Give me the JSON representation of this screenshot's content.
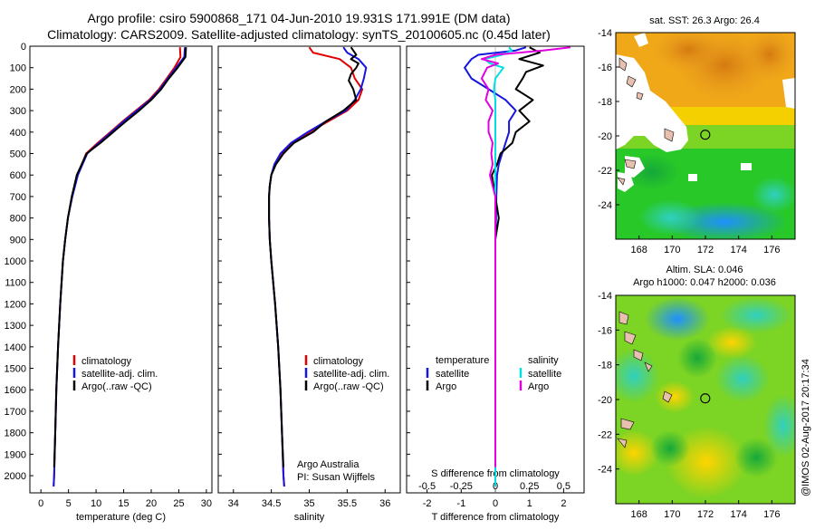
{
  "title_line1": "Argo profile: csiro 5900868_171 04-Jun-2010 19.931S 171.991E (DM data)",
  "title_line2": "Climatology: CARS2009. Satellite-adjusted climatology: synTS_20100605.nc (0.45d later)",
  "credit": "@IMOS 02-Aug-2017 20:17:34",
  "colors": {
    "climatology": "#e00000",
    "satellite": "#1515e0",
    "argo": "#000000",
    "s_satellite": "#00e0e0",
    "s_argo": "#e000e0"
  },
  "chart_data": [
    {
      "id": "temperature",
      "type": "line",
      "xlabel": "temperature (deg C)",
      "ylabel": "",
      "xlim": [
        -2,
        31
      ],
      "ylim": [
        2080,
        0
      ],
      "xticks": [
        "0",
        "5",
        "10",
        "15",
        "20",
        "25",
        "30"
      ],
      "yticks": [
        "0",
        "100",
        "200",
        "300",
        "400",
        "500",
        "600",
        "700",
        "800",
        "900",
        "1000",
        "1100",
        "1200",
        "1300",
        "1400",
        "1500",
        "1600",
        "1700",
        "1800",
        "1900",
        "2000"
      ],
      "legend": [
        "climatology",
        "satellite-adj. clim.",
        "Argo(..raw -QC)"
      ],
      "series": [
        {
          "name": "climatology",
          "depth": [
            5,
            50,
            100,
            150,
            200,
            250,
            300,
            350,
            400,
            450,
            500,
            600,
            700,
            800,
            900,
            1000,
            1200,
            1400,
            1600,
            1800,
            2000,
            2050
          ],
          "values": [
            25.2,
            25.3,
            24.2,
            22.8,
            21.4,
            19.6,
            17.2,
            14.8,
            12.6,
            10.3,
            8.2,
            6.6,
            5.6,
            4.9,
            4.4,
            4.0,
            3.5,
            3.1,
            2.8,
            2.6,
            2.4,
            2.3
          ]
        },
        {
          "name": "satellite-adj. clim.",
          "depth": [
            5,
            50,
            100,
            150,
            200,
            250,
            300,
            350,
            400,
            450,
            500,
            600,
            700,
            800,
            900,
            1000,
            1200,
            1400,
            1600,
            1800,
            2000,
            2050
          ],
          "values": [
            26.1,
            26.0,
            24.5,
            23.0,
            21.6,
            19.8,
            17.4,
            15.0,
            12.8,
            10.5,
            8.4,
            6.7,
            5.7,
            4.9,
            4.4,
            4.0,
            3.5,
            3.1,
            2.8,
            2.6,
            2.4,
            2.3
          ]
        },
        {
          "name": "Argo(..raw -QC)",
          "depth": [
            5,
            50,
            100,
            150,
            200,
            250,
            300,
            350,
            400,
            450,
            500,
            600,
            700,
            800,
            900,
            1000,
            1200,
            1400,
            1600,
            1800,
            1960
          ],
          "values": [
            26.3,
            26.2,
            24.8,
            23.2,
            21.8,
            20.0,
            17.8,
            15.4,
            13.1,
            10.8,
            8.3,
            6.5,
            5.6,
            4.9,
            4.4,
            4.0,
            3.5,
            3.1,
            2.8,
            2.6,
            2.4
          ]
        }
      ]
    },
    {
      "id": "salinity",
      "type": "line",
      "xlabel": "salinity",
      "xlim": [
        33.8,
        36.2
      ],
      "ylim": [
        2080,
        0
      ],
      "xticks": [
        "34",
        "34.5",
        "35",
        "35.5",
        "36"
      ],
      "legend": [
        "climatology",
        "satellite-adj. clim.",
        "Argo(..raw -QC)"
      ],
      "annotation": [
        "Argo Australia",
        "PI: Susan Wijffels"
      ],
      "series": [
        {
          "name": "climatology",
          "depth": [
            5,
            30,
            60,
            100,
            150,
            200,
            250,
            300,
            350,
            400,
            450,
            500,
            550,
            600,
            650,
            700,
            800,
            900,
            1000,
            1200,
            1400,
            1600,
            1800,
            2000,
            2050
          ],
          "values": [
            35.0,
            35.05,
            35.4,
            35.55,
            35.6,
            35.7,
            35.65,
            35.5,
            35.25,
            35.0,
            34.78,
            34.63,
            34.55,
            34.5,
            34.48,
            34.47,
            34.47,
            34.48,
            34.5,
            34.55,
            34.59,
            34.62,
            34.64,
            34.66,
            34.67
          ]
        },
        {
          "name": "satellite-adj. clim.",
          "depth": [
            5,
            30,
            60,
            100,
            150,
            200,
            250,
            300,
            350,
            400,
            450,
            500,
            550,
            600,
            650,
            700,
            800,
            900,
            1000,
            1200,
            1400,
            1600,
            1800,
            2000,
            2050
          ],
          "values": [
            35.45,
            35.5,
            35.65,
            35.75,
            35.72,
            35.68,
            35.6,
            35.48,
            35.22,
            34.98,
            34.76,
            34.62,
            34.54,
            34.5,
            34.48,
            34.47,
            34.47,
            34.48,
            34.5,
            34.55,
            34.59,
            34.62,
            34.64,
            34.66,
            34.67
          ]
        },
        {
          "name": "Argo(..raw -QC)",
          "depth": [
            5,
            20,
            40,
            60,
            80,
            100,
            130,
            160,
            200,
            250,
            300,
            350,
            400,
            450,
            500,
            550,
            600,
            650,
            700,
            800,
            900,
            1000,
            1200,
            1400,
            1600,
            1800,
            1960
          ],
          "values": [
            35.55,
            35.58,
            35.62,
            35.55,
            35.65,
            35.62,
            35.55,
            35.52,
            35.58,
            35.62,
            35.45,
            35.22,
            35.05,
            34.8,
            34.66,
            34.56,
            34.5,
            34.48,
            34.47,
            34.47,
            34.48,
            34.5,
            34.55,
            34.59,
            34.62,
            34.64,
            34.66
          ]
        }
      ]
    },
    {
      "id": "difference",
      "type": "line",
      "xlabel": "T difference from climatology",
      "xlabel_top": "S difference from climatology",
      "xlim": [
        -2.6,
        2.6
      ],
      "ylim": [
        2080,
        0
      ],
      "xticks": [
        "-2",
        "-1",
        "0",
        "1",
        "2"
      ],
      "xticks_top": [
        "-0.5",
        "-0.25",
        "0",
        "0.25",
        "0.5"
      ],
      "legend_t_header": "temperature",
      "legend_s_header": "salinity",
      "legend_t": [
        "satellite",
        "Argo"
      ],
      "legend_s": [
        "satellite",
        "Argo"
      ],
      "series": [
        {
          "name": "T satellite",
          "depth": [
            5,
            20,
            40,
            60,
            80,
            100,
            150,
            200,
            250,
            300,
            350,
            400,
            450,
            500,
            550,
            600,
            700,
            800,
            900,
            1000,
            1200,
            1500,
            1800,
            2050
          ],
          "values": [
            0.9,
            0.6,
            -0.5,
            -0.7,
            -0.8,
            -0.9,
            -0.7,
            -0.2,
            0.3,
            0.6,
            0.4,
            0.4,
            0.3,
            0.2,
            0.1,
            0.05,
            0.03,
            0.02,
            0.0,
            0.0,
            0.0,
            0.0,
            0.0,
            0.0
          ]
        },
        {
          "name": "T Argo",
          "depth": [
            5,
            30,
            60,
            90,
            120,
            150,
            200,
            250,
            300,
            350,
            400,
            450,
            500,
            550,
            600,
            700,
            800,
            900,
            1000,
            1200,
            1500,
            1800,
            1960
          ],
          "values": [
            1.0,
            1.3,
            0.7,
            1.4,
            0.9,
            0.8,
            0.6,
            1.1,
            0.7,
            1.0,
            0.6,
            0.5,
            0.15,
            0.05,
            -0.1,
            0.0,
            0.1,
            0.0,
            0.0,
            0.0,
            0.0,
            0.0,
            0.0
          ]
        },
        {
          "name": "S satellite",
          "depth": [
            5,
            20,
            40,
            60,
            80,
            100,
            150,
            200,
            250,
            300,
            350,
            400,
            450,
            500,
            600,
            700,
            800,
            1000,
            1500,
            2050
          ],
          "values": [
            0.1,
            0.12,
            0.05,
            -0.08,
            -0.04,
            0.06,
            0.0,
            -0.01,
            0.0,
            0.0,
            0.0,
            0.0,
            0.0,
            0.0,
            0.0,
            0.0,
            0.0,
            0.0,
            0.0,
            0.0
          ]
        },
        {
          "name": "S Argo",
          "depth": [
            5,
            20,
            40,
            60,
            80,
            100,
            150,
            200,
            250,
            300,
            350,
            400,
            450,
            500,
            550,
            600,
            650,
            700,
            800,
            1000,
            1500,
            1960
          ],
          "values": [
            0.55,
            0.35,
            0.0,
            -0.1,
            0.02,
            -0.06,
            -0.1,
            -0.05,
            -0.07,
            -0.02,
            -0.05,
            -0.05,
            -0.02,
            -0.03,
            -0.02,
            -0.04,
            -0.02,
            0.0,
            0.0,
            0.0,
            0.0,
            0.0
          ]
        }
      ]
    },
    {
      "id": "sst_map",
      "type": "heatmap",
      "title": "sat. SST: 26.3 Argo: 26.4",
      "xticks": [
        "168",
        "170",
        "172",
        "174",
        "176"
      ],
      "yticks": [
        "-14",
        "-16",
        "-18",
        "-20",
        "-22",
        "-24"
      ],
      "xlim": [
        166.6,
        177.4
      ],
      "ylim": [
        -26,
        -14
      ],
      "marker": {
        "lon": 171.99,
        "lat": -19.93
      }
    },
    {
      "id": "sla_map",
      "type": "heatmap",
      "title_line1": "Altim. SLA: 0.046",
      "title_line2": "Argo h1000: 0.047 h2000: 0.036",
      "xticks": [
        "168",
        "170",
        "172",
        "174",
        "176"
      ],
      "yticks": [
        "-14",
        "-16",
        "-18",
        "-20",
        "-22",
        "-24"
      ],
      "xlim": [
        166.6,
        177.4
      ],
      "ylim": [
        -26,
        -14
      ],
      "marker": {
        "lon": 171.99,
        "lat": -19.93
      }
    }
  ]
}
